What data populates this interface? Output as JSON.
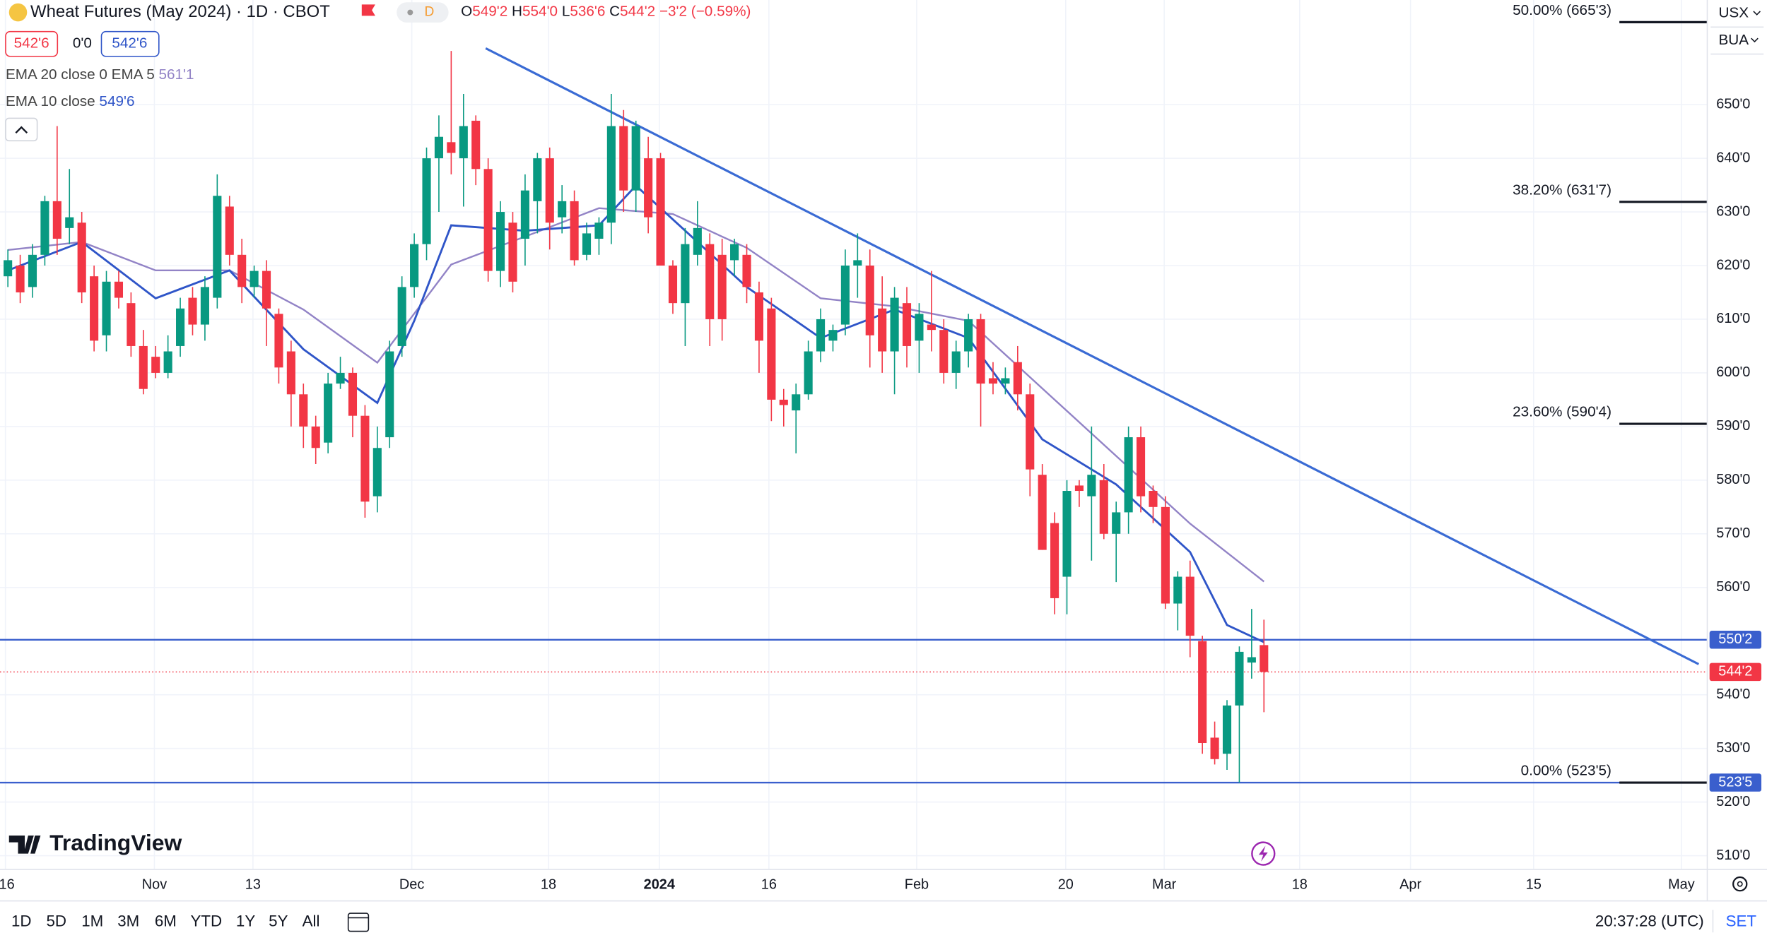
{
  "chart_data": {
    "type": "candlestick",
    "title": "Wheat Futures (May 2024) · 1D · CBOT",
    "interval": "D",
    "quote": [
      {
        "key": "O",
        "text": "549'2"
      },
      {
        "key": "H",
        "text": "554'0"
      },
      {
        "key": "L",
        "text": "536'6"
      },
      {
        "key": "C",
        "text": "544'2"
      }
    ],
    "change": "−3'2 (−0.59%)",
    "bid": "542'6",
    "spread": "0'0",
    "ask": "542'6",
    "up_color": "#089981",
    "down_color": "#f23645",
    "xlim": [
      -0.64,
      138
    ],
    "ylim": [
      507.45,
      669.5
    ],
    "grid": true,
    "xticks": [
      {
        "value": -0.2,
        "label": "16"
      },
      {
        "value": 11.9,
        "label": "Nov"
      },
      {
        "value": 19.9,
        "label": "13"
      },
      {
        "value": 32.8,
        "label": "Dec"
      },
      {
        "value": 43.9,
        "label": "18"
      },
      {
        "value": 52.9,
        "label": "2024"
      },
      {
        "value": 61.8,
        "label": "16"
      },
      {
        "value": 73.8,
        "label": "Feb"
      },
      {
        "value": 85.9,
        "label": "20"
      },
      {
        "value": 93.9,
        "label": "Mar"
      },
      {
        "value": 104.9,
        "label": "18"
      },
      {
        "value": 113.9,
        "label": "Apr"
      },
      {
        "value": 123.9,
        "label": "15"
      },
      {
        "value": 135.9,
        "label": "May"
      }
    ],
    "yticks": [
      {
        "value": 650,
        "label": "650'0"
      },
      {
        "value": 640,
        "label": "640'0"
      },
      {
        "value": 630,
        "label": "630'0"
      },
      {
        "value": 620,
        "label": "620'0"
      },
      {
        "value": 610,
        "label": "610'0"
      },
      {
        "value": 600,
        "label": "600'0"
      },
      {
        "value": 590,
        "label": "590'0"
      },
      {
        "value": 580,
        "label": "580'0"
      },
      {
        "value": 570,
        "label": "570'0"
      },
      {
        "value": 560,
        "label": "560'0"
      },
      {
        "value": 540,
        "label": "540'0"
      },
      {
        "value": 530,
        "label": "530'0"
      },
      {
        "value": 520,
        "label": "520'0"
      },
      {
        "value": 510,
        "label": "510'0"
      }
    ],
    "ohlc": [
      [
        618,
        623,
        616,
        621
      ],
      [
        620,
        622,
        613,
        615
      ],
      [
        616,
        624,
        614,
        622
      ],
      [
        622,
        633,
        620,
        632
      ],
      [
        632,
        646,
        622,
        625
      ],
      [
        627,
        638,
        624,
        629
      ],
      [
        628,
        630,
        613,
        615
      ],
      [
        618,
        620,
        604,
        606
      ],
      [
        607,
        619,
        604,
        617
      ],
      [
        617,
        619,
        612,
        614
      ],
      [
        613,
        615,
        603,
        605
      ],
      [
        605,
        608,
        596,
        597
      ],
      [
        603,
        605,
        599,
        600
      ],
      [
        600,
        607,
        599,
        604
      ],
      [
        605,
        614,
        603,
        612
      ],
      [
        614,
        616,
        607,
        609
      ],
      [
        609,
        618,
        606,
        616
      ],
      [
        614,
        637,
        612,
        633
      ],
      [
        631,
        633,
        620,
        622
      ],
      [
        622,
        625,
        613,
        616
      ],
      [
        616,
        620,
        614,
        619
      ],
      [
        619,
        621,
        605,
        612
      ],
      [
        611,
        612,
        598,
        601
      ],
      [
        604,
        606,
        590,
        596
      ],
      [
        596,
        598,
        586,
        590
      ],
      [
        590,
        592,
        583,
        586
      ],
      [
        587,
        600,
        585,
        598
      ],
      [
        598,
        603,
        597,
        600
      ],
      [
        600,
        601,
        588,
        592
      ],
      [
        592,
        594,
        573,
        576
      ],
      [
        577,
        590,
        574,
        586
      ],
      [
        588,
        606,
        586,
        604
      ],
      [
        605,
        618,
        603,
        616
      ],
      [
        616,
        626,
        614,
        624
      ],
      [
        624,
        642,
        621,
        640
      ],
      [
        640,
        648,
        630,
        644
      ],
      [
        643,
        660,
        637,
        641
      ],
      [
        640,
        652,
        631,
        646
      ],
      [
        647,
        648,
        635,
        638
      ],
      [
        638,
        640,
        617,
        619
      ],
      [
        619,
        632,
        616,
        630
      ],
      [
        628,
        630,
        615,
        617
      ],
      [
        625,
        637,
        620,
        634
      ],
      [
        632,
        641,
        626,
        640
      ],
      [
        640,
        642,
        623,
        628
      ],
      [
        629,
        635,
        626,
        632
      ],
      [
        632,
        634,
        620,
        621
      ],
      [
        622,
        628,
        621,
        626
      ],
      [
        625,
        629,
        622,
        628
      ],
      [
        628,
        652,
        624,
        646
      ],
      [
        646,
        649,
        630,
        634
      ],
      [
        634,
        647,
        630,
        646
      ],
      [
        640,
        644,
        626,
        629
      ],
      [
        640,
        641,
        620,
        620
      ],
      [
        620,
        621,
        611,
        613
      ],
      [
        613,
        627,
        605,
        624
      ],
      [
        622,
        632,
        620,
        627
      ],
      [
        624,
        626,
        605,
        610
      ],
      [
        622,
        625,
        606,
        610
      ],
      [
        621,
        625,
        618,
        624
      ],
      [
        622,
        624,
        613,
        616
      ],
      [
        615,
        617,
        600,
        606
      ],
      [
        612,
        614,
        591,
        595
      ],
      [
        595,
        597,
        590,
        594
      ],
      [
        593,
        598,
        585,
        596
      ],
      [
        596,
        606,
        595,
        604
      ],
      [
        604,
        612,
        602,
        610
      ],
      [
        606,
        609,
        604,
        608
      ],
      [
        609,
        623,
        607,
        620
      ],
      [
        620,
        626,
        614,
        621
      ],
      [
        620,
        623,
        601,
        607
      ],
      [
        612,
        618,
        600,
        604
      ],
      [
        604,
        616,
        596,
        614
      ],
      [
        613,
        616,
        601,
        605
      ],
      [
        606,
        613,
        600,
        611
      ],
      [
        609,
        619,
        604,
        608
      ],
      [
        608,
        610,
        598,
        600
      ],
      [
        600,
        606,
        597,
        604
      ],
      [
        604,
        611,
        601,
        610
      ],
      [
        610,
        611,
        590,
        598
      ],
      [
        599,
        602,
        596,
        598
      ],
      [
        598,
        601,
        596,
        599
      ],
      [
        602,
        605,
        593,
        596
      ],
      [
        596,
        598,
        577,
        582
      ],
      [
        581,
        583,
        567,
        567
      ],
      [
        572,
        574,
        555,
        558
      ],
      [
        562,
        580,
        555,
        578
      ],
      [
        579,
        580,
        575,
        578
      ],
      [
        577,
        590,
        565,
        581
      ],
      [
        580,
        583,
        569,
        570
      ],
      [
        570,
        576,
        561,
        574
      ],
      [
        574,
        590,
        570,
        588
      ],
      [
        588,
        590,
        574,
        577
      ],
      [
        578,
        579,
        572,
        575
      ],
      [
        575,
        577,
        556,
        557
      ],
      [
        557,
        563,
        552,
        562
      ],
      [
        562,
        565,
        547,
        551
      ],
      [
        550,
        551,
        529,
        531
      ],
      [
        532,
        535,
        527,
        528
      ],
      [
        529,
        539,
        526,
        538
      ],
      [
        538,
        549,
        523.625,
        548
      ],
      [
        546,
        556,
        543,
        547
      ],
      [
        549.25,
        554,
        536.75,
        544.25
      ]
    ],
    "series": [
      {
        "name": "EMA 20 close 0 EMA 5",
        "last_label": "561'1",
        "color": "#9283c6",
        "x": [
          0,
          6,
          12,
          18,
          24,
          30,
          36,
          42,
          48,
          54,
          60,
          66,
          72,
          78,
          84,
          90,
          96,
          102
        ],
        "values": [
          622.9,
          624.4,
          619.1,
          619.1,
          611.8,
          601.9,
          620.2,
          625.4,
          630.7,
          629.6,
          623.3,
          613.9,
          612.4,
          609.7,
          597.1,
          584.5,
          571.9,
          561.1
        ]
      },
      {
        "name": "EMA 10 close",
        "last_label": "549'6",
        "color": "#2f55c8",
        "x": [
          0,
          6,
          12,
          18,
          24,
          30,
          33,
          36,
          42,
          48,
          51,
          54,
          60,
          66,
          72,
          78,
          84,
          87,
          90,
          96,
          99,
          102
        ],
        "values": [
          619.1,
          624.4,
          613.9,
          619.1,
          604.4,
          594.4,
          609.7,
          627.5,
          626.5,
          627.5,
          634.9,
          628.6,
          616.0,
          606.5,
          611.8,
          606.5,
          587.6,
          583.4,
          579.2,
          566.6,
          553.0,
          549.8
        ]
      }
    ],
    "trendline": {
      "color": "#3a6bd4",
      "x": [
        38.8,
        137.3
      ],
      "y": [
        660.5,
        545.7
      ]
    },
    "levels": [
      {
        "value": 550.25,
        "label": "550'2",
        "color": "#3a5fcd"
      },
      {
        "value": 523.625,
        "label": "523'5",
        "color": "#3a5fcd"
      }
    ],
    "last_price": {
      "value": 544.25,
      "label": "544'2",
      "color": "#f23645"
    },
    "fib": [
      {
        "value": 665.375,
        "label": "50.00% (665'3)"
      },
      {
        "value": 631.875,
        "label": "38.20% (631'7)"
      },
      {
        "value": 590.5,
        "label": "23.60% (590'4)"
      },
      {
        "value": 523.625,
        "label": "0.00% (523'5)"
      }
    ]
  },
  "ui": {
    "currency": "USX",
    "unit": "BUA",
    "brand": "TradingView",
    "ranges": [
      "1D",
      "5D",
      "1M",
      "3M",
      "6M",
      "YTD",
      "1Y",
      "5Y",
      "All"
    ],
    "clock": "20:37:28 (UTC)",
    "settings": "SET"
  }
}
